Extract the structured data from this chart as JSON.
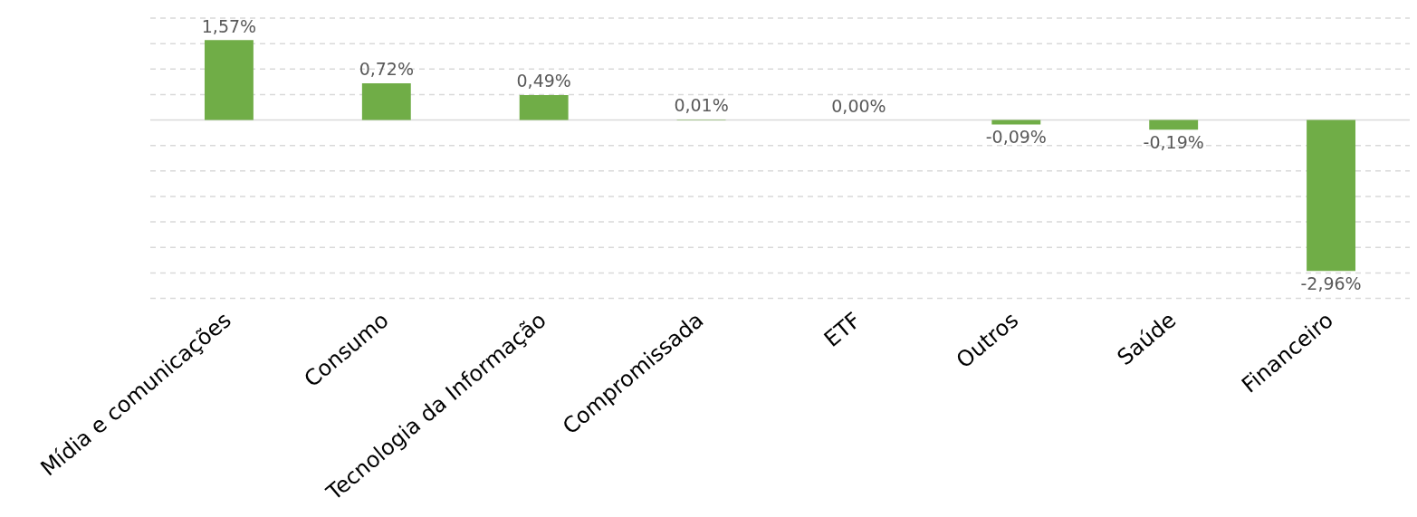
{
  "chart_data": {
    "type": "bar",
    "categories": [
      "Mídia e comunicações",
      "Consumo",
      "Tecnologia da Informação",
      "Compromissada",
      "ETF",
      "Outros",
      "Saúde",
      "Financeiro"
    ],
    "values": [
      1.57,
      0.72,
      0.49,
      0.01,
      0.0,
      -0.09,
      -0.19,
      -2.96
    ],
    "value_labels": [
      "1,57%",
      "0,72%",
      "0,49%",
      "0,01%",
      "0,00%",
      "-0,09%",
      "-0,19%",
      "-2,96%"
    ],
    "color": "#70ad47",
    "ylim": [
      -3.5,
      2
    ],
    "yticks": [
      {
        "value": 2,
        "label": null
      },
      {
        "value": 1.5,
        "label": null
      },
      {
        "value": 1,
        "label": null
      },
      {
        "value": 0.5,
        "label": null
      },
      {
        "value": 0,
        "label": null
      },
      {
        "value": -0.5,
        "label": null
      },
      {
        "value": -1,
        "label": null
      },
      {
        "value": -1.5,
        "label": null
      },
      {
        "value": -2,
        "label": null
      },
      {
        "value": -2.5,
        "label": null
      },
      {
        "value": -3,
        "label": null
      },
      {
        "value": -3.5,
        "label": null
      }
    ],
    "grid": "y",
    "tick_labels": "x",
    "legend": false
  }
}
